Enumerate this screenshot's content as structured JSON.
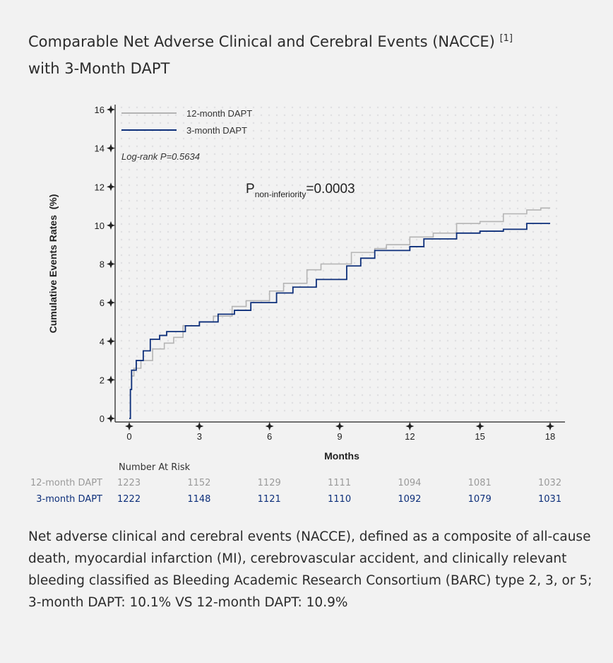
{
  "title": "Comparable Net Adverse Clinical and Cerebral Events (NACCE)",
  "title_ref": "[1]",
  "title_line2": "with 3-Month DAPT",
  "chart_data": {
    "type": "line",
    "step": true,
    "xlabel": "Months",
    "ylabel": "Cumulative Events Rates  (%)",
    "xlim": [
      0,
      18
    ],
    "ylim": [
      0,
      16
    ],
    "xticks": [
      0,
      3,
      6,
      9,
      12,
      15,
      18
    ],
    "yticks": [
      0,
      2,
      4,
      6,
      8,
      10,
      12,
      14,
      16
    ],
    "grid": "dotted",
    "legend_position": "top-left",
    "annotations": {
      "logrank": "Log-rank P=0.5634",
      "p_main": "P",
      "p_sub": "non-inferiority",
      "p_value": "=0.0003"
    },
    "series": [
      {
        "name": "12-month DAPT",
        "color": "#b4b4b4",
        "x": [
          0,
          0.05,
          0.1,
          0.2,
          0.5,
          1.0,
          1.5,
          1.9,
          2.3,
          3.0,
          3.6,
          4.4,
          5.0,
          6.0,
          6.6,
          7.6,
          8.2,
          9.5,
          10.5,
          11.0,
          12.0,
          13.0,
          14.0,
          15.0,
          16.0,
          17.0,
          17.6,
          18.0
        ],
        "y": [
          0,
          1.5,
          2.2,
          2.6,
          3.0,
          3.6,
          3.9,
          4.2,
          4.8,
          5.0,
          5.3,
          5.8,
          6.1,
          6.6,
          7.0,
          7.7,
          8.0,
          8.6,
          8.8,
          9.0,
          9.4,
          9.6,
          10.1,
          10.2,
          10.6,
          10.8,
          10.9,
          10.9
        ]
      },
      {
        "name": "3-month DAPT",
        "color": "#0d2f7a",
        "x": [
          0,
          0.05,
          0.1,
          0.3,
          0.6,
          0.9,
          1.3,
          1.6,
          2.4,
          3.0,
          3.8,
          4.5,
          5.2,
          6.3,
          7.0,
          8.0,
          9.3,
          9.9,
          10.5,
          12.0,
          12.6,
          14.0,
          15.0,
          16.0,
          17.0,
          18.0
        ],
        "y": [
          0,
          1.5,
          2.5,
          3.0,
          3.5,
          4.1,
          4.3,
          4.5,
          4.8,
          5.0,
          5.4,
          5.6,
          6.0,
          6.5,
          6.8,
          7.2,
          7.9,
          8.3,
          8.7,
          8.9,
          9.3,
          9.6,
          9.7,
          9.8,
          10.1,
          10.1
        ]
      }
    ],
    "risk_table": {
      "header": "Number At Risk",
      "rows": [
        {
          "label": "12-month DAPT",
          "color": "#9a9a9a",
          "values": [
            "1223",
            "1152",
            "1129",
            "1111",
            "1094",
            "1081",
            "1032"
          ]
        },
        {
          "label": "3-month DAPT",
          "color": "#0d2f7a",
          "values": [
            "1222",
            "1148",
            "1121",
            "1110",
            "1092",
            "1079",
            "1031"
          ]
        }
      ]
    }
  },
  "caption": "Net adverse clinical and cerebral events (NACCE), defined as a composite of all-cause death, myocardial infarction (MI), cerebrovascular accident, and clinically relevant bleeding classified as Bleeding Academic Research Consortium (BARC) type 2, 3, or 5; 3-month DAPT: 10.1% VS 12-month DAPT: 10.9%"
}
